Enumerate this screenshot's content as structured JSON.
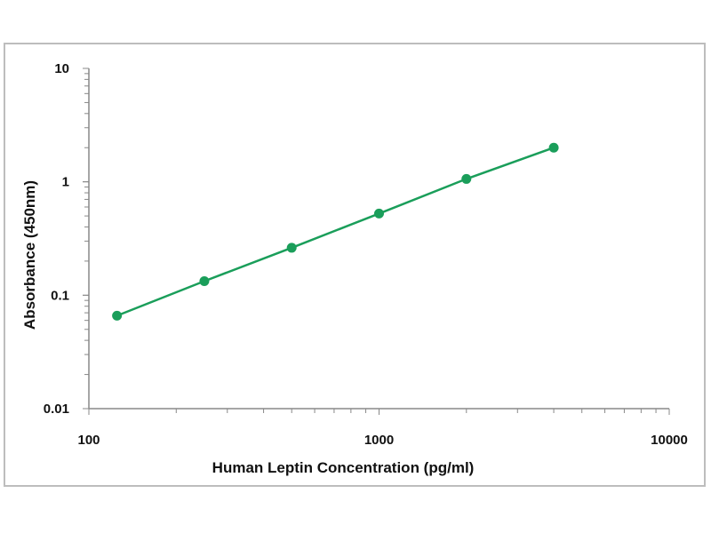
{
  "chart_data": {
    "type": "line",
    "xscale": "log",
    "yscale": "log",
    "xlim": [
      100,
      10000
    ],
    "ylim": [
      0.01,
      10
    ],
    "xticks": [
      "100",
      "1000",
      "10000"
    ],
    "yticks": [
      "0.01",
      "0.1",
      "1",
      "10"
    ],
    "xlabel": "Human Leptin Concentration (pg/ml)",
    "ylabel": "Absorbance (450nm)",
    "grid": false,
    "series": [
      {
        "color": "#1a9e5a",
        "x": [
          125,
          250,
          500,
          1000,
          2000,
          4000
        ],
        "y": [
          0.066,
          0.133,
          0.262,
          0.525,
          1.06,
          2.0
        ]
      }
    ]
  }
}
